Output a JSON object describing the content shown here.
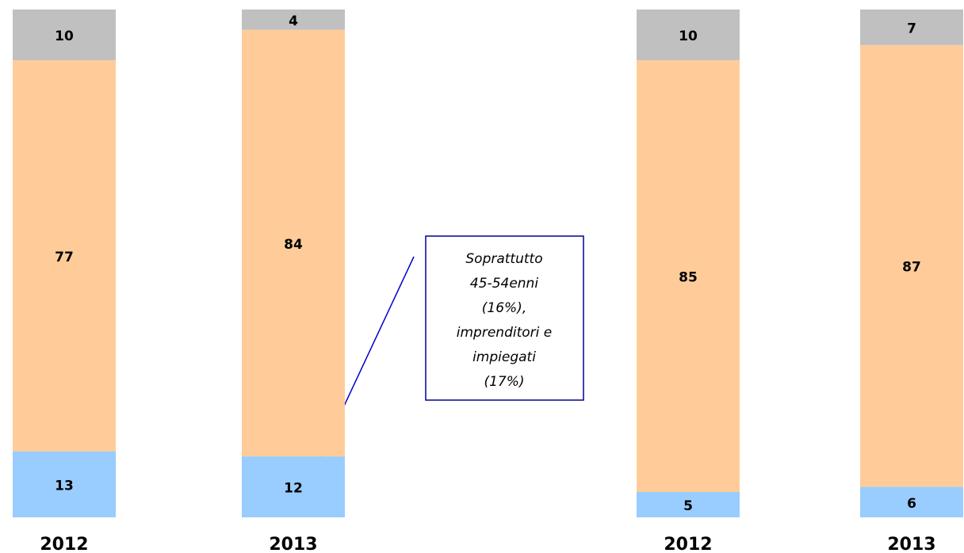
{
  "chart_data": {
    "type": "stacked_bar",
    "categories": [
      "2012",
      "2013",
      "2012",
      "2013"
    ],
    "series": [
      {
        "color": "#99ccff",
        "values": [
          13,
          12,
          5,
          6
        ]
      },
      {
        "color": "#ffcc99",
        "values": [
          77,
          84,
          85,
          87
        ]
      },
      {
        "color": "#c0c0c0",
        "values": [
          10,
          4,
          10,
          7
        ]
      }
    ],
    "ylim": [
      0,
      100
    ],
    "annotation": [
      "Soprattutto",
      "45-54enni",
      "(16%),",
      "imprenditori e",
      "impiegati",
      "(17%)"
    ]
  }
}
